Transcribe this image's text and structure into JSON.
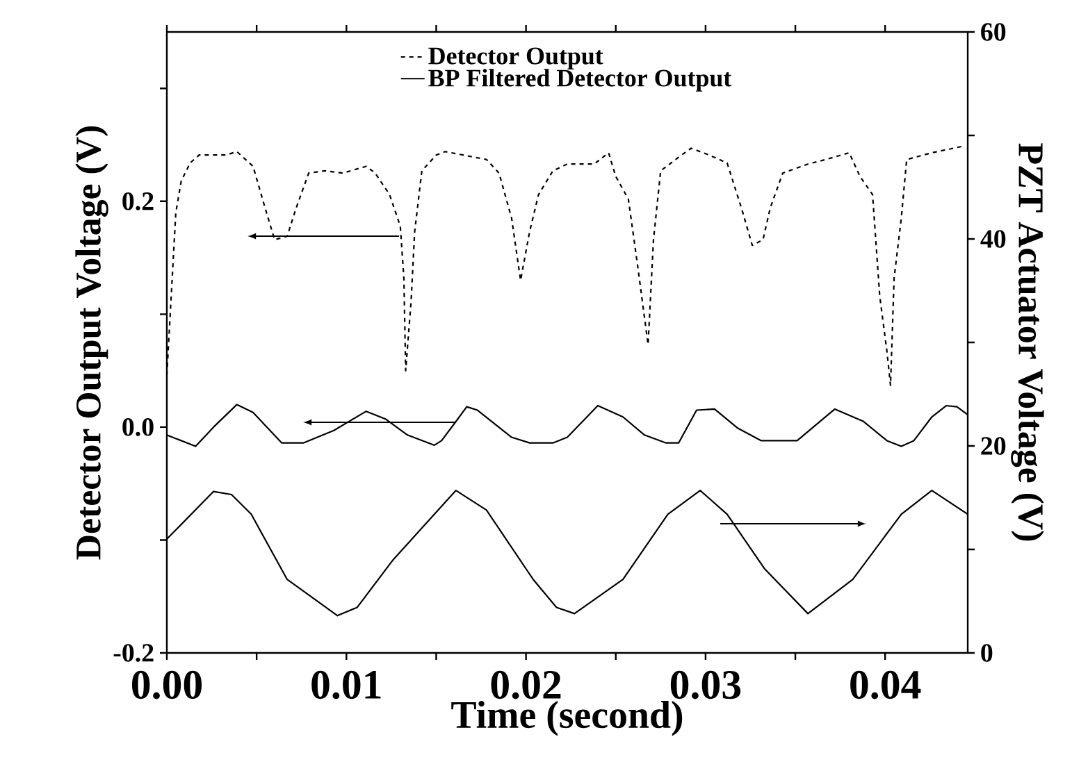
{
  "chart_data": {
    "type": "line",
    "xlabel": "Time (second)",
    "ylabel": "Detector Output Voltage (V)",
    "y2label": "PZT Actuator Voltage (V)",
    "xlim": [
      0,
      0.0446
    ],
    "ylim": [
      -0.2,
      0.35
    ],
    "y2lim": [
      0,
      60
    ],
    "xticks": [
      {
        "value": 0,
        "label": "0.00"
      },
      {
        "value": 0.005,
        "label": null
      },
      0.01,
      {
        "value": 0.015,
        "label": null
      },
      0.02,
      {
        "value": 0.025,
        "label": null
      },
      0.03,
      {
        "value": 0.035,
        "label": null
      },
      0.04
    ],
    "yticks": [
      -0.2,
      {
        "value": -0.1,
        "label": null
      },
      {
        "value": 0,
        "label": "0.0"
      },
      {
        "value": 0.1,
        "label": null
      },
      0.2,
      {
        "value": 0.3,
        "label": null
      }
    ],
    "y2ticks": [
      0,
      {
        "value": 10,
        "label": null
      },
      20,
      {
        "value": 30,
        "label": null
      },
      40,
      {
        "value": 50,
        "label": null
      },
      60
    ],
    "legend": "top",
    "grid": false,
    "marker": "none",
    "series": [
      {
        "name": "Detector Output",
        "color": "#000000",
        "line_style": "dashed",
        "axis": "y",
        "x": [
          0,
          0.0005,
          0.0008,
          0.0013,
          0.0018,
          0.0033,
          0.0039,
          0.0048,
          0.0054,
          0.006,
          0.0067,
          0.0072,
          0.0079,
          0.0088,
          0.0098,
          0.0111,
          0.0116,
          0.0124,
          0.013,
          0.0132,
          0.0133,
          0.0136,
          0.0138,
          0.0142,
          0.015,
          0.0155,
          0.0165,
          0.0178,
          0.0185,
          0.0192,
          0.0197,
          0.0202,
          0.0207,
          0.0215,
          0.0223,
          0.0238,
          0.0246,
          0.025,
          0.0257,
          0.0262,
          0.0268,
          0.0271,
          0.0275,
          0.0285,
          0.0292,
          0.0302,
          0.0312,
          0.032,
          0.0326,
          0.0332,
          0.0336,
          0.0343,
          0.0357,
          0.0367,
          0.038,
          0.0386,
          0.0393,
          0.0397,
          0.0401,
          0.0403,
          0.0405,
          0.0409,
          0.0412,
          0.0426,
          0.0444
        ],
        "values": [
          0.046,
          0.19,
          0.218,
          0.234,
          0.241,
          0.241,
          0.244,
          0.231,
          0.198,
          0.166,
          0.169,
          0.194,
          0.225,
          0.227,
          0.225,
          0.231,
          0.225,
          0.206,
          0.178,
          0.132,
          0.05,
          0.111,
          0.173,
          0.227,
          0.241,
          0.244,
          0.241,
          0.237,
          0.225,
          0.185,
          0.13,
          0.173,
          0.206,
          0.227,
          0.233,
          0.233,
          0.243,
          0.222,
          0.202,
          0.145,
          0.073,
          0.166,
          0.227,
          0.239,
          0.247,
          0.241,
          0.234,
          0.194,
          0.161,
          0.166,
          0.194,
          0.225,
          0.233,
          0.237,
          0.243,
          0.222,
          0.206,
          0.116,
          0.067,
          0.037,
          0.132,
          0.185,
          0.237,
          0.243,
          0.249
        ]
      },
      {
        "name": "BP Filtered Detector Output",
        "color": "#000000",
        "line_style": "solid",
        "axis": "y",
        "x": [
          0,
          0.0016,
          0.0026,
          0.0039,
          0.0048,
          0.0064,
          0.0076,
          0.0093,
          0.0111,
          0.0122,
          0.0134,
          0.0149,
          0.0153,
          0.0161,
          0.0167,
          0.0173,
          0.0192,
          0.0202,
          0.0215,
          0.0223,
          0.024,
          0.0254,
          0.0266,
          0.0278,
          0.0285,
          0.0295,
          0.0305,
          0.0318,
          0.0331,
          0.0351,
          0.0372,
          0.0388,
          0.0401,
          0.0409,
          0.0416,
          0.0426,
          0.0434,
          0.044,
          0.0446
        ],
        "values": [
          -0.007,
          -0.017,
          0.0,
          0.02,
          0.013,
          -0.014,
          -0.014,
          -0.003,
          0.014,
          0.007,
          -0.007,
          -0.016,
          -0.012,
          0.005,
          0.018,
          0.015,
          -0.009,
          -0.014,
          -0.014,
          -0.009,
          0.019,
          0.009,
          -0.007,
          -0.014,
          -0.014,
          0.015,
          0.016,
          -0.001,
          -0.012,
          -0.012,
          0.016,
          0.005,
          -0.012,
          -0.017,
          -0.012,
          0.009,
          0.019,
          0.018,
          0.011
        ]
      },
      {
        "color": "#000000",
        "line_style": "solid",
        "axis": "y2",
        "x": [
          0,
          0.0026,
          0.0036,
          0.0047,
          0.0067,
          0.0095,
          0.0106,
          0.0126,
          0.0161,
          0.0178,
          0.0204,
          0.0217,
          0.0227,
          0.0254,
          0.0279,
          0.0297,
          0.0312,
          0.0333,
          0.0357,
          0.0382,
          0.0409,
          0.0426,
          0.0446
        ],
        "values": [
          11.0,
          15.6,
          15.3,
          13.4,
          7.1,
          3.6,
          4.4,
          9.0,
          15.7,
          13.8,
          7.1,
          4.4,
          3.8,
          7.1,
          13.4,
          15.7,
          13.4,
          8.1,
          3.8,
          7.1,
          13.4,
          15.7,
          13.4
        ]
      }
    ]
  }
}
